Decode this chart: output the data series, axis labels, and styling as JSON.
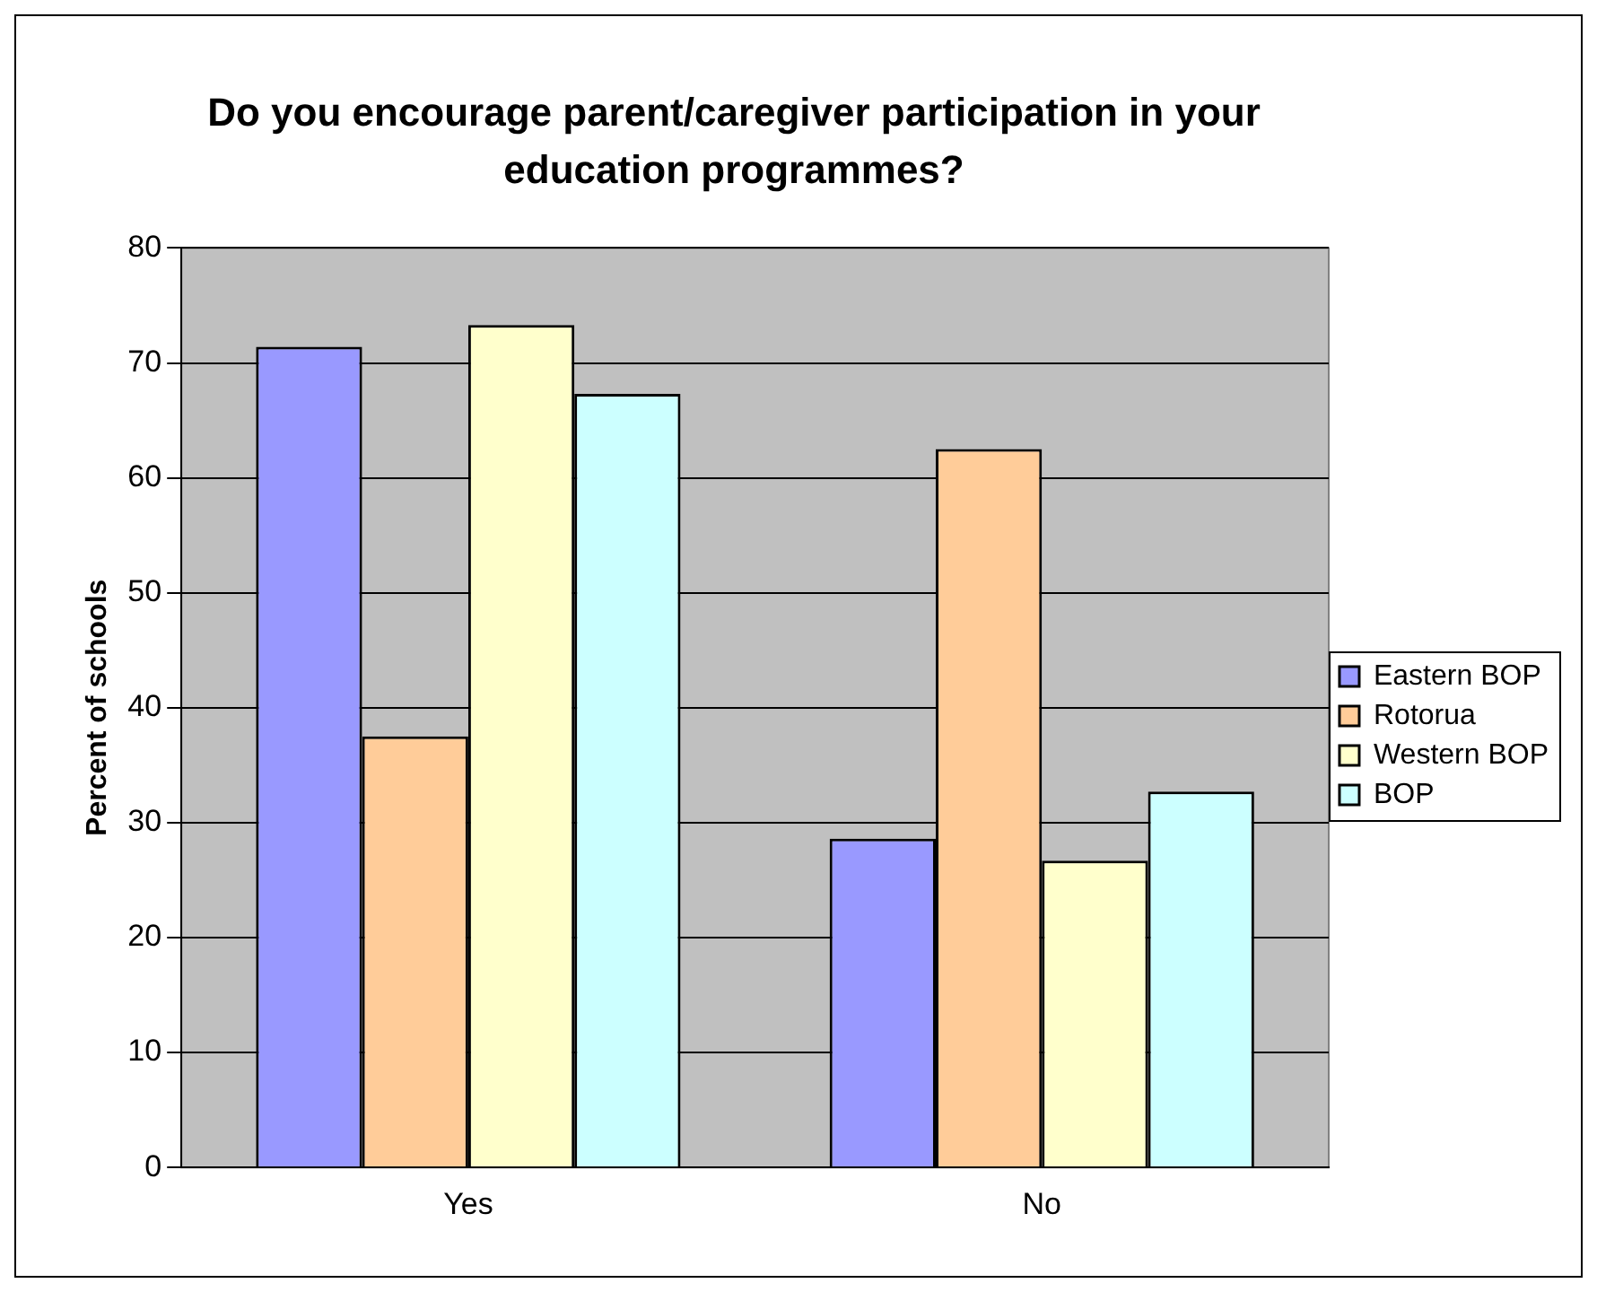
{
  "chart_data": {
    "type": "bar",
    "title": "Do you encourage parent/caregiver participation in your education programmes?",
    "ylabel": "Percent of schools",
    "categories": [
      "Yes",
      "No"
    ],
    "series": [
      {
        "name": "Eastern BOP",
        "color": "#9999ff",
        "values": [
          71.4,
          28.6
        ]
      },
      {
        "name": "Rotorua",
        "color": "#ffcc99",
        "values": [
          37.5,
          62.5
        ]
      },
      {
        "name": "Western BOP",
        "color": "#ffffcc",
        "values": [
          73.3,
          26.7
        ]
      },
      {
        "name": "BOP",
        "color": "#ccffff",
        "values": [
          67.3,
          32.7
        ]
      }
    ],
    "ylim": [
      0,
      80
    ],
    "yticks": [
      0,
      10,
      20,
      30,
      40,
      50,
      60,
      70,
      80
    ],
    "grid": "y",
    "legend": "right"
  }
}
